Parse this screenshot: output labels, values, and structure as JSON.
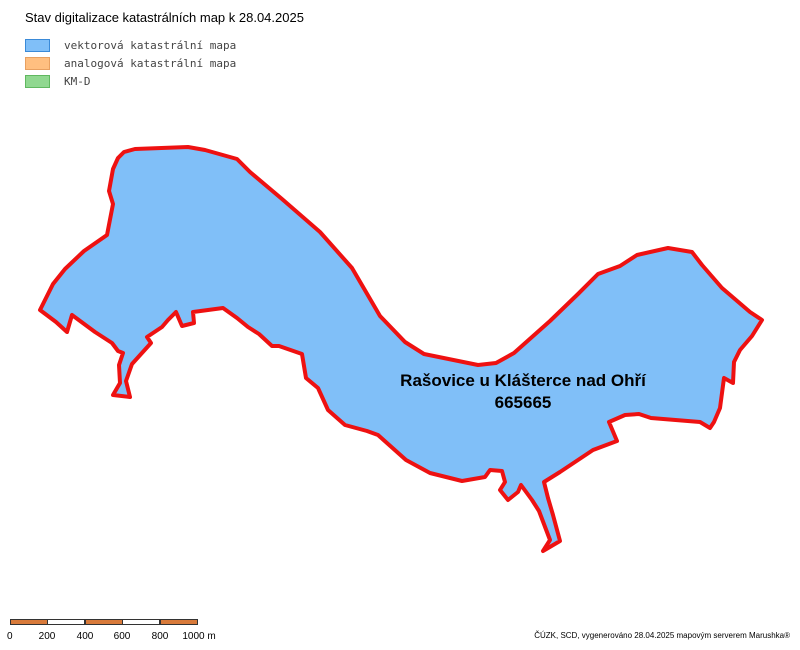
{
  "title": "Stav digitalizace katastrálních map k 28.04.2025",
  "legend": [
    {
      "label": "vektorová katastrální mapa",
      "fill": "#80bff8",
      "stroke": "#3a8ad8"
    },
    {
      "label": "analogová katastrální mapa",
      "fill": "#ffbf80",
      "stroke": "#e8a060"
    },
    {
      "label": "KM-D",
      "fill": "#90d890",
      "stroke": "#60b860"
    }
  ],
  "parcel": {
    "name": "Rašovice u Klášterce nad Ohří",
    "code": "665665",
    "fill": "#80bff8",
    "border": "#ee1111"
  },
  "scalebar": {
    "ticks": [
      "0",
      "200",
      "400",
      "600",
      "800",
      "1000 m"
    ],
    "colors": [
      "#d87a3a",
      "#ffffff"
    ]
  },
  "credits": "ČÚZK, SCD, vygenerováno 28.04.2025 mapovým serverem Marushka®"
}
